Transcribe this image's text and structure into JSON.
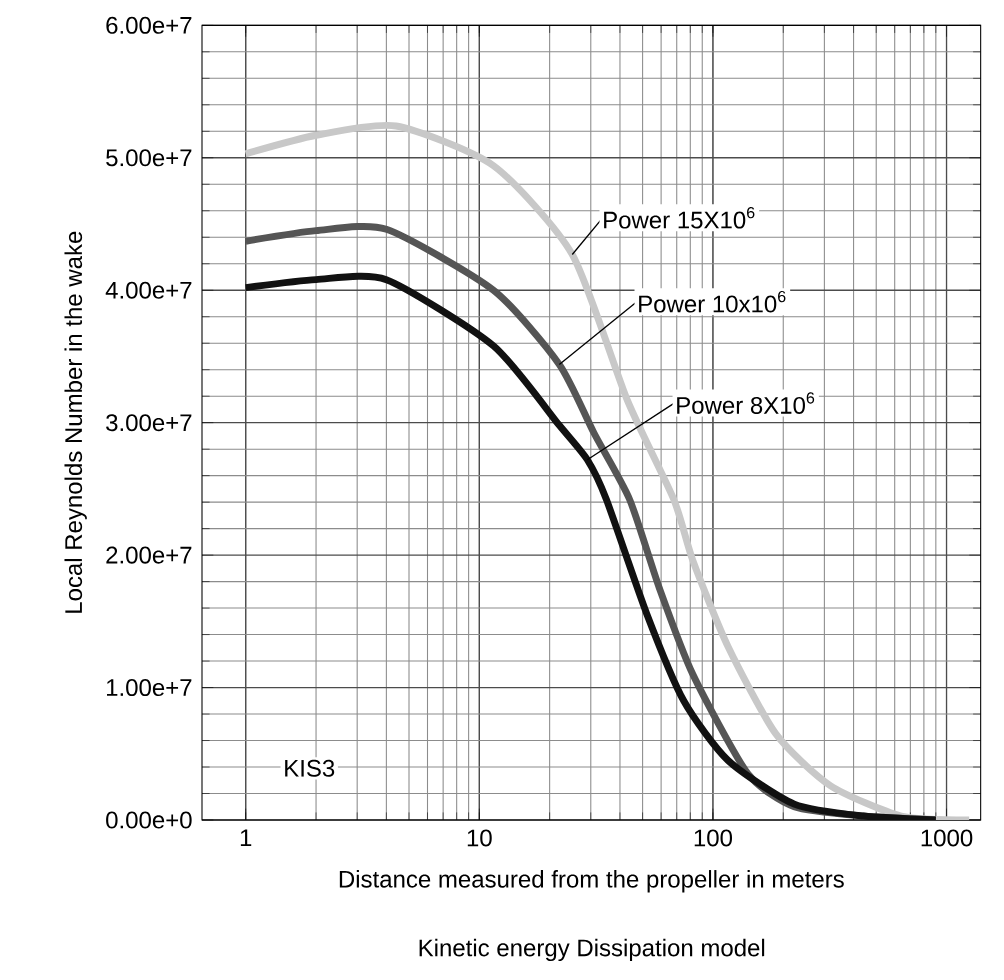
{
  "chart_data": {
    "type": "line",
    "xlabel": "Distance measured from the propeller in meters",
    "ylabel": "Local Reynolds Number in the wake",
    "log": "x",
    "grid": true,
    "marker": "none",
    "line_style": "solid",
    "xlim": [
      0.65,
      1400
    ],
    "xticks": [
      1,
      10,
      100,
      1000
    ],
    "ylim": [
      0,
      60000000
    ],
    "yticks": [
      {
        "value": 0,
        "label": "0.00e+0"
      },
      {
        "value": 10000000,
        "label": "1.00e+7"
      },
      {
        "value": 20000000,
        "label": "2.00e+7"
      },
      {
        "value": 30000000,
        "label": "3.00e+7"
      },
      {
        "value": 40000000,
        "label": "4.00e+7"
      },
      {
        "value": 50000000,
        "label": "5.00e+7"
      },
      {
        "value": 60000000,
        "label": "6.00e+7"
      }
    ],
    "series": [
      {
        "color": "#c8c8c8",
        "x": [
          1,
          2,
          4.4,
          11.5,
          25,
          43,
          68,
          82,
          116,
          186,
          318,
          640,
          1250
        ],
        "values": [
          50300000,
          51700000,
          52400000,
          49400000,
          42700000,
          31700000,
          24200000,
          19600000,
          13100000,
          6500000,
          2600000,
          300000,
          0
        ]
      },
      {
        "color": "#555555",
        "x": [
          1,
          2,
          4,
          11.5,
          22,
          31,
          44,
          59,
          82,
          141,
          223,
          440,
          900
        ],
        "values": [
          43700000,
          44500000,
          44600000,
          40000000,
          34400000,
          29200000,
          24200000,
          17500000,
          11000000,
          3500000,
          1000000,
          300000,
          0
        ]
      },
      {
        "color": "#111111",
        "x": [
          1,
          2,
          4,
          11.5,
          22,
          29,
          35,
          52,
          75,
          116,
          223,
          440,
          900
        ],
        "values": [
          40200000,
          40800000,
          40800000,
          35800000,
          29800000,
          27200000,
          24200000,
          15600000,
          9000000,
          4500000,
          1200000,
          300000,
          0
        ]
      }
    ],
    "annotations": [
      {
        "text": "Power 15X10$^{6}$",
        "x": 25,
        "y": 42700000
      },
      {
        "text": "Power 10x10$^{6}$",
        "x": 22,
        "y": 34400000
      },
      {
        "text": "Power  8X10$^{6}$",
        "x": 29,
        "y": 27200000
      },
      "KIS3",
      "Kinetic energy Dissipation model"
    ]
  }
}
